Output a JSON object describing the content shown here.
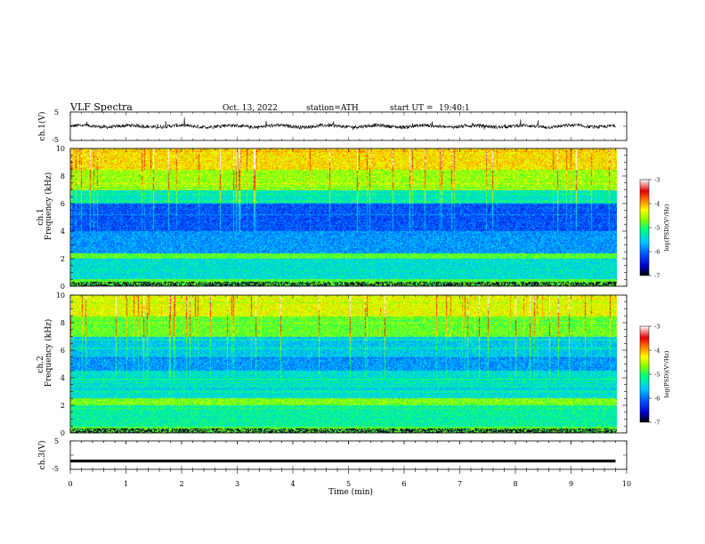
{
  "header": {
    "title": "VLF  Spectra",
    "date": "Oct. 13, 2022",
    "station": "station=ATH",
    "start_label": "start  UT  =",
    "start_time": "19:40:1"
  },
  "chart_data": [
    {
      "type": "line",
      "panel": "ch1-waveform",
      "ylabel": "ch.1(V)",
      "ylim": [
        -5,
        5
      ],
      "yticks": [
        "5",
        "-5"
      ],
      "xlim": [
        0,
        10
      ],
      "series": [
        {
          "values_range": [
            -2,
            2
          ]
        }
      ]
    },
    {
      "type": "heatmap",
      "panel": "ch1-spectrogram",
      "ylabel_top": "ch.1",
      "ylabel": "Frequency  (kHz)",
      "ylim": [
        0,
        10
      ],
      "yticks": [
        "0",
        "2",
        "4",
        "6",
        "8",
        "10"
      ],
      "xlim": [
        0,
        9.8
      ],
      "colorbar": {
        "label": "log(PSD)(V²/Hz)",
        "range": [
          -7,
          -3
        ],
        "ticks": [
          "-3",
          "-4",
          "-5",
          "-6",
          "-7"
        ]
      }
    },
    {
      "type": "heatmap",
      "panel": "ch2-spectrogram",
      "ylabel_top": "ch.2",
      "ylabel": "Frequency  (kHz)",
      "ylim": [
        0,
        10
      ],
      "yticks": [
        "0",
        "2",
        "4",
        "6",
        "8",
        "10"
      ],
      "xlim": [
        0,
        9.8
      ],
      "colorbar": {
        "label": "log(PSD)(V²/Hz)",
        "range": [
          -7,
          -3
        ],
        "ticks": [
          "-3",
          "-4",
          "-5",
          "-6",
          "-7"
        ]
      }
    },
    {
      "type": "line",
      "panel": "ch3-waveform",
      "ylabel": "ch.3(V)",
      "ylim": [
        -5,
        5
      ],
      "yticks": [
        "5",
        "-5"
      ],
      "xlim": [
        0,
        10
      ],
      "series": [
        {
          "values_range": [
            -2.4,
            -1.8
          ]
        }
      ]
    }
  ],
  "xaxis": {
    "label": "Time  (min)",
    "ticks": [
      "0",
      "1",
      "2",
      "3",
      "4",
      "5",
      "6",
      "7",
      "8",
      "9",
      "10"
    ]
  },
  "colors": {
    "background": "#ffffff",
    "axes": "#000000",
    "colormap": [
      "#000000",
      "#0000c8",
      "#0050ff",
      "#00c8ff",
      "#00ff80",
      "#80ff00",
      "#ffff00",
      "#ff8000",
      "#e00000",
      "#ffffff"
    ]
  }
}
